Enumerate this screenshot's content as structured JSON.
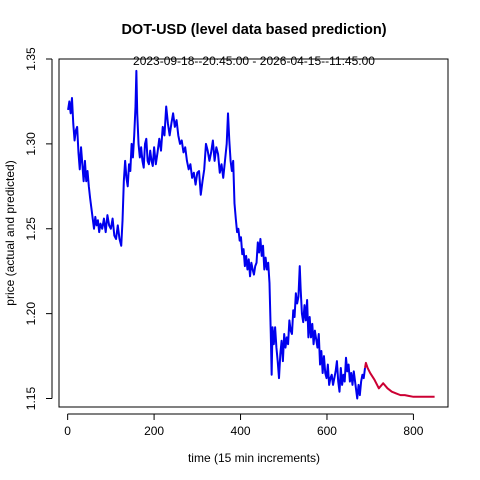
{
  "chart_data": {
    "type": "line",
    "title": "DOT-USD (level data based prediction)",
    "subtitle": "2023-09-18--20:45:00  -  2026-04-15--11:45:00",
    "xlabel": "time (15 min increments)",
    "ylabel": "price (actual and predicted)",
    "xlim": [
      -20,
      880
    ],
    "ylim": [
      1.145,
      1.35
    ],
    "x_ticks": [
      0,
      200,
      400,
      600,
      800
    ],
    "y_ticks": [
      1.15,
      1.2,
      1.25,
      1.3,
      1.35
    ],
    "x_tick_labels": [
      "0",
      "200",
      "400",
      "600",
      "800"
    ],
    "y_tick_labels": [
      "1.15",
      "1.20",
      "1.25",
      "1.30",
      "1.35"
    ],
    "grid": false,
    "series": [
      {
        "color": "#0000ee",
        "points": [
          [
            1,
            1.32
          ],
          [
            4,
            1.325
          ],
          [
            7,
            1.318
          ],
          [
            10,
            1.327
          ],
          [
            13,
            1.312
          ],
          [
            16,
            1.302
          ],
          [
            19,
            1.308
          ],
          [
            22,
            1.31
          ],
          [
            25,
            1.295
          ],
          [
            28,
            1.285
          ],
          [
            31,
            1.298
          ],
          [
            34,
            1.288
          ],
          [
            37,
            1.278
          ],
          [
            40,
            1.29
          ],
          [
            43,
            1.278
          ],
          [
            46,
            1.284
          ],
          [
            49,
            1.275
          ],
          [
            52,
            1.268
          ],
          [
            55,
            1.262
          ],
          [
            58,
            1.256
          ],
          [
            61,
            1.25
          ],
          [
            64,
            1.257
          ],
          [
            67,
            1.252
          ],
          [
            70,
            1.255
          ],
          [
            73,
            1.248
          ],
          [
            76,
            1.253
          ],
          [
            80,
            1.25
          ],
          [
            84,
            1.256
          ],
          [
            88,
            1.248
          ],
          [
            92,
            1.258
          ],
          [
            96,
            1.252
          ],
          [
            100,
            1.25
          ],
          [
            104,
            1.256
          ],
          [
            108,
            1.246
          ],
          [
            112,
            1.244
          ],
          [
            116,
            1.252
          ],
          [
            120,
            1.244
          ],
          [
            124,
            1.24
          ],
          [
            127,
            1.255
          ],
          [
            130,
            1.278
          ],
          [
            133,
            1.29
          ],
          [
            136,
            1.28
          ],
          [
            139,
            1.275
          ],
          [
            142,
            1.288
          ],
          [
            145,
            1.284
          ],
          [
            148,
            1.3
          ],
          [
            151,
            1.292
          ],
          [
            154,
            1.305
          ],
          [
            157,
            1.322
          ],
          [
            159,
            1.343
          ],
          [
            161,
            1.318
          ],
          [
            164,
            1.3
          ],
          [
            167,
            1.292
          ],
          [
            170,
            1.298
          ],
          [
            173,
            1.29
          ],
          [
            176,
            1.286
          ],
          [
            179,
            1.3
          ],
          [
            182,
            1.303
          ],
          [
            185,
            1.29
          ],
          [
            188,
            1.288
          ],
          [
            191,
            1.296
          ],
          [
            194,
            1.29
          ],
          [
            197,
            1.287
          ],
          [
            200,
            1.298
          ],
          [
            204,
            1.288
          ],
          [
            208,
            1.295
          ],
          [
            212,
            1.303
          ],
          [
            216,
            1.296
          ],
          [
            220,
            1.31
          ],
          [
            224,
            1.305
          ],
          [
            228,
            1.322
          ],
          [
            232,
            1.312
          ],
          [
            236,
            1.305
          ],
          [
            240,
            1.312
          ],
          [
            244,
            1.318
          ],
          [
            248,
            1.31
          ],
          [
            252,
            1.314
          ],
          [
            256,
            1.305
          ],
          [
            260,
            1.3
          ],
          [
            264,
            1.302
          ],
          [
            268,
            1.295
          ],
          [
            272,
            1.298
          ],
          [
            276,
            1.29
          ],
          [
            280,
            1.285
          ],
          [
            284,
            1.288
          ],
          [
            288,
            1.28
          ],
          [
            292,
            1.283
          ],
          [
            296,
            1.276
          ],
          [
            300,
            1.283
          ],
          [
            304,
            1.284
          ],
          [
            308,
            1.27
          ],
          [
            312,
            1.278
          ],
          [
            316,
            1.285
          ],
          [
            320,
            1.3
          ],
          [
            324,
            1.296
          ],
          [
            328,
            1.29
          ],
          [
            332,
            1.295
          ],
          [
            336,
            1.302
          ],
          [
            340,
            1.29
          ],
          [
            344,
            1.298
          ],
          [
            348,
            1.294
          ],
          [
            352,
            1.283
          ],
          [
            356,
            1.288
          ],
          [
            360,
            1.28
          ],
          [
            364,
            1.29
          ],
          [
            368,
            1.3
          ],
          [
            371,
            1.318
          ],
          [
            374,
            1.302
          ],
          [
            377,
            1.29
          ],
          [
            380,
            1.284
          ],
          [
            383,
            1.29
          ],
          [
            386,
            1.265
          ],
          [
            389,
            1.256
          ],
          [
            392,
            1.248
          ],
          [
            395,
            1.25
          ],
          [
            398,
            1.243
          ],
          [
            401,
            1.245
          ],
          [
            404,
            1.235
          ],
          [
            407,
            1.238
          ],
          [
            410,
            1.228
          ],
          [
            413,
            1.234
          ],
          [
            416,
            1.226
          ],
          [
            419,
            1.232
          ],
          [
            422,
            1.222
          ],
          [
            425,
            1.23
          ],
          [
            428,
            1.226
          ],
          [
            431,
            1.223
          ],
          [
            434,
            1.228
          ],
          [
            437,
            1.23
          ],
          [
            440,
            1.242
          ],
          [
            443,
            1.236
          ],
          [
            446,
            1.244
          ],
          [
            449,
            1.234
          ],
          [
            452,
            1.24
          ],
          [
            455,
            1.226
          ],
          [
            458,
            1.233
          ],
          [
            461,
            1.226
          ],
          [
            464,
            1.23
          ],
          [
            467,
            1.218
          ],
          [
            470,
            1.188
          ],
          [
            472,
            1.164
          ],
          [
            474,
            1.192
          ],
          [
            477,
            1.182
          ],
          [
            480,
            1.192
          ],
          [
            483,
            1.18
          ],
          [
            486,
            1.172
          ],
          [
            489,
            1.162
          ],
          [
            492,
            1.176
          ],
          [
            495,
            1.184
          ],
          [
            498,
            1.172
          ],
          [
            501,
            1.188
          ],
          [
            504,
            1.18
          ],
          [
            507,
            1.186
          ],
          [
            510,
            1.182
          ],
          [
            513,
            1.196
          ],
          [
            516,
            1.19
          ],
          [
            519,
            1.188
          ],
          [
            522,
            1.202
          ],
          [
            525,
            1.198
          ],
          [
            528,
            1.212
          ],
          [
            531,
            1.206
          ],
          [
            534,
            1.21
          ],
          [
            537,
            1.228
          ],
          [
            539,
            1.215
          ],
          [
            542,
            1.2
          ],
          [
            545,
            1.195
          ],
          [
            548,
            1.205
          ],
          [
            551,
            1.196
          ],
          [
            554,
            1.208
          ],
          [
            557,
            1.186
          ],
          [
            560,
            1.198
          ],
          [
            563,
            1.186
          ],
          [
            566,
            1.194
          ],
          [
            569,
            1.182
          ],
          [
            572,
            1.19
          ],
          [
            575,
            1.185
          ],
          [
            578,
            1.18
          ],
          [
            581,
            1.188
          ],
          [
            584,
            1.17
          ],
          [
            587,
            1.178
          ],
          [
            590,
            1.165
          ],
          [
            593,
            1.175
          ],
          [
            596,
            1.165
          ],
          [
            599,
            1.162
          ],
          [
            602,
            1.17
          ],
          [
            605,
            1.158
          ],
          [
            608,
            1.162
          ],
          [
            611,
            1.164
          ],
          [
            614,
            1.158
          ],
          [
            617,
            1.162
          ],
          [
            620,
            1.166
          ],
          [
            623,
            1.172
          ],
          [
            626,
            1.16
          ],
          [
            629,
            1.154
          ],
          [
            632,
            1.168
          ],
          [
            635,
            1.158
          ],
          [
            638,
            1.164
          ],
          [
            641,
            1.16
          ],
          [
            644,
            1.174
          ],
          [
            647,
            1.166
          ],
          [
            650,
            1.17
          ],
          [
            653,
            1.16
          ],
          [
            656,
            1.165
          ],
          [
            659,
            1.158
          ],
          [
            662,
            1.166
          ],
          [
            665,
            1.16
          ],
          [
            668,
            1.154
          ],
          [
            670,
            1.15
          ],
          [
            673,
            1.158
          ],
          [
            676,
            1.152
          ],
          [
            679,
            1.16
          ],
          [
            682,
            1.164
          ],
          [
            685,
            1.162
          ],
          [
            688,
            1.168
          ]
        ]
      },
      {
        "color": "#cc0033",
        "points": [
          [
            688,
            1.168
          ],
          [
            690,
            1.171
          ],
          [
            694,
            1.168
          ],
          [
            700,
            1.165
          ],
          [
            710,
            1.161
          ],
          [
            720,
            1.156
          ],
          [
            730,
            1.159
          ],
          [
            740,
            1.156
          ],
          [
            750,
            1.154
          ],
          [
            760,
            1.153
          ],
          [
            770,
            1.152
          ],
          [
            780,
            1.152
          ],
          [
            790,
            1.1515
          ],
          [
            800,
            1.151
          ],
          [
            810,
            1.151
          ],
          [
            820,
            1.151
          ],
          [
            830,
            1.151
          ],
          [
            840,
            1.151
          ],
          [
            849,
            1.151
          ]
        ]
      }
    ]
  }
}
